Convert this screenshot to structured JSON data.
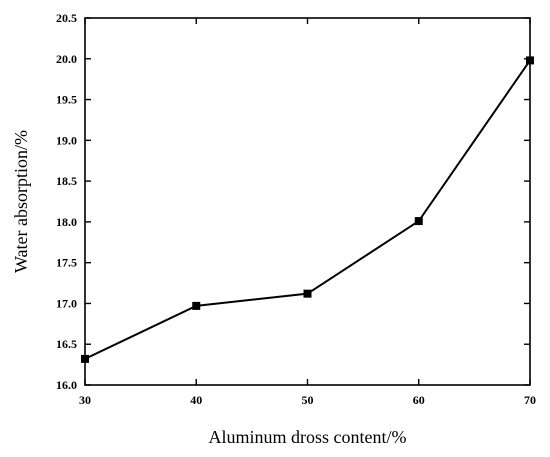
{
  "chart_data": {
    "type": "line",
    "title": "",
    "xlabel": "Aluminum dross content/%",
    "ylabel": "Water absorption/%",
    "x": [
      30,
      40,
      50,
      60,
      70
    ],
    "series": [
      {
        "values": [
          16.32,
          16.97,
          17.12,
          18.01,
          19.98
        ]
      }
    ],
    "xlim": [
      30,
      70
    ],
    "ylim": [
      16.0,
      20.5
    ],
    "xticks": [
      "30",
      "40",
      "50",
      "60",
      "70"
    ],
    "yticks": [
      "16.0",
      "16.5",
      "17.0",
      "17.5",
      "18.0",
      "18.5",
      "19.0",
      "19.5",
      "20.0",
      "20.5"
    ],
    "grid": false,
    "marker": "square",
    "line_color": "#000000"
  }
}
